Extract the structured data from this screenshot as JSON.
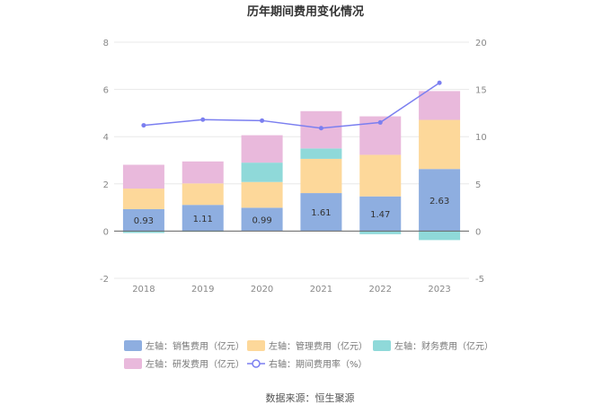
{
  "chart_data": {
    "type": "bar",
    "title": "历年期间费用变化情况",
    "categories": [
      "2018",
      "2019",
      "2020",
      "2021",
      "2022",
      "2023"
    ],
    "series": [
      {
        "name": "左轴：销售费用（亿元）",
        "color": "#8eaee0",
        "values": [
          0.93,
          1.11,
          0.99,
          1.61,
          1.47,
          2.63
        ],
        "axis": "left",
        "stack": true
      },
      {
        "name": "左轴：管理费用（亿元）",
        "color": "#fdd89a",
        "values": [
          0.87,
          0.91,
          1.09,
          1.45,
          1.76,
          2.08
        ],
        "axis": "left",
        "stack": true
      },
      {
        "name": "左轴：财务费用（亿元）",
        "color": "#8fd9d9",
        "values": [
          -0.08,
          -0.03,
          0.82,
          0.44,
          -0.13,
          -0.38
        ],
        "axis": "left",
        "stack": true
      },
      {
        "name": "左轴：研发费用（亿元）",
        "color": "#e9b9dc",
        "values": [
          1.01,
          0.93,
          1.16,
          1.58,
          1.63,
          1.22
        ],
        "axis": "left",
        "stack": true
      },
      {
        "name": "右轴：期间费用率（%）",
        "color": "#7b7ff0",
        "type": "line",
        "values": [
          11.2,
          11.8,
          11.7,
          10.9,
          11.5,
          15.7
        ],
        "axis": "right"
      }
    ],
    "bar_labels": [
      "0.93",
      "1.11",
      "0.99",
      "1.61",
      "1.47",
      "2.63"
    ],
    "y_left": {
      "ticks": [
        "-2",
        "0",
        "2",
        "4",
        "6",
        "8"
      ],
      "min": -2,
      "max": 8
    },
    "y_right": {
      "ticks": [
        "-5",
        "0",
        "5",
        "10",
        "15",
        "20"
      ],
      "min": -5,
      "max": 20
    },
    "legend_position": "bottom",
    "grid": true
  },
  "source": "数据来源：恒生聚源"
}
